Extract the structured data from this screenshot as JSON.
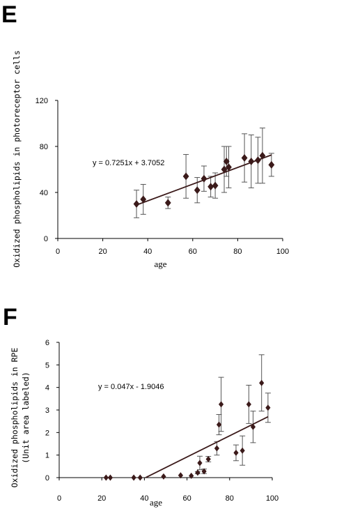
{
  "panels": [
    {
      "letter": "E"
    },
    {
      "letter": "F"
    }
  ],
  "chart_data": [
    {
      "type": "scatter",
      "xlabel": "age",
      "ylabel": "Oxidized phospholipids in photoreceptor cells",
      "xlim": [
        0,
        100
      ],
      "ylim": [
        0,
        120
      ],
      "xticks": [
        0,
        20,
        40,
        60,
        80,
        100
      ],
      "yticks": [
        0,
        40,
        80,
        120
      ],
      "equation": "y = 0.7251x + 3.7052",
      "trendline": {
        "slope": 0.7251,
        "intercept": 3.7052,
        "x_range": [
          35,
          95
        ]
      },
      "color": "#3b1a1a",
      "points": [
        {
          "x": 35,
          "y": 30,
          "err": 12
        },
        {
          "x": 38,
          "y": 34,
          "err": 13
        },
        {
          "x": 49,
          "y": 31,
          "err": 5
        },
        {
          "x": 57,
          "y": 54,
          "err": 19
        },
        {
          "x": 62,
          "y": 42,
          "err": 11
        },
        {
          "x": 65,
          "y": 52,
          "err": 11
        },
        {
          "x": 68,
          "y": 45,
          "err": 9
        },
        {
          "x": 70,
          "y": 46,
          "err": 11
        },
        {
          "x": 74,
          "y": 60,
          "err": 20
        },
        {
          "x": 75,
          "y": 67,
          "err": 13
        },
        {
          "x": 76,
          "y": 62,
          "err": 18
        },
        {
          "x": 83,
          "y": 70,
          "err": 21
        },
        {
          "x": 86,
          "y": 67,
          "err": 23
        },
        {
          "x": 89,
          "y": 68,
          "err": 20
        },
        {
          "x": 91,
          "y": 72,
          "err": 24
        },
        {
          "x": 95,
          "y": 64,
          "err": 10
        }
      ]
    },
    {
      "type": "scatter",
      "xlabel": "age",
      "ylabel": "Oxidized phospholipids in RPE",
      "ylabel2": "(Unit area labeled)",
      "xlim": [
        0,
        100
      ],
      "ylim": [
        0,
        6
      ],
      "xticks": [
        0,
        20,
        40,
        60,
        80,
        100
      ],
      "yticks": [
        0,
        1,
        2,
        3,
        4,
        5,
        6
      ],
      "equation": "y = 0.047x - 1.9046",
      "trendline": {
        "slope": 0.047,
        "intercept": -1.9046,
        "x_range": [
          40.5,
          98
        ]
      },
      "color": "#3b1a1a",
      "points": [
        {
          "x": 22,
          "y": 0,
          "err": 0
        },
        {
          "x": 24,
          "y": 0,
          "err": 0
        },
        {
          "x": 35,
          "y": 0,
          "err": 0
        },
        {
          "x": 38,
          "y": 0,
          "err": 0
        },
        {
          "x": 49,
          "y": 0.05,
          "err": 0
        },
        {
          "x": 57,
          "y": 0.1,
          "err": 0
        },
        {
          "x": 62,
          "y": 0.08,
          "err": 0
        },
        {
          "x": 65,
          "y": 0.22,
          "err": 0.05
        },
        {
          "x": 66,
          "y": 0.65,
          "err": 0.3
        },
        {
          "x": 68,
          "y": 0.28,
          "err": 0.1
        },
        {
          "x": 70,
          "y": 0.82,
          "err": 0.12
        },
        {
          "x": 74,
          "y": 1.3,
          "err": 0.3
        },
        {
          "x": 75,
          "y": 2.35,
          "err": 0.45
        },
        {
          "x": 76,
          "y": 3.25,
          "err": 1.2
        },
        {
          "x": 83,
          "y": 1.1,
          "err": 0.35
        },
        {
          "x": 86,
          "y": 1.2,
          "err": 0.65
        },
        {
          "x": 89,
          "y": 3.25,
          "err": 0.85
        },
        {
          "x": 91,
          "y": 2.25,
          "err": 0.7
        },
        {
          "x": 95,
          "y": 4.2,
          "err": 1.25
        },
        {
          "x": 98,
          "y": 3.1,
          "err": 0.65
        }
      ]
    }
  ]
}
